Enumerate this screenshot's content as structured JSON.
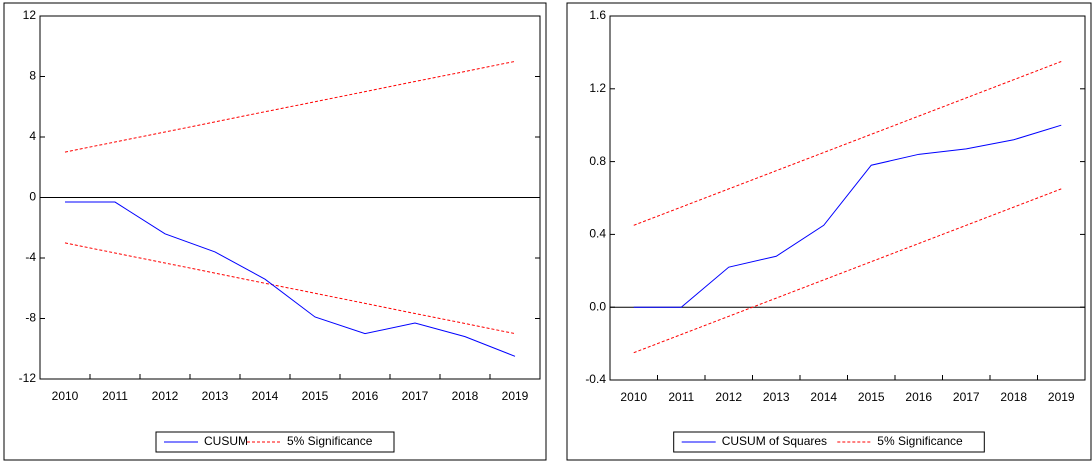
{
  "chart_data": [
    {
      "type": "line",
      "categories": [
        "2010",
        "2011",
        "2012",
        "2013",
        "2014",
        "2015",
        "2016",
        "2017",
        "2018",
        "2019"
      ],
      "series": [
        {
          "name": "CUSUM",
          "color": "#0000ff",
          "values": [
            -0.3,
            -0.3,
            -2.4,
            -3.6,
            -5.4,
            -7.9,
            -9.0,
            -8.3,
            -9.2,
            -10.5
          ]
        }
      ],
      "bands": {
        "name": "5% Significance",
        "color": "#ff0000",
        "upper": [
          3,
          3.67,
          4.33,
          5,
          5.67,
          6.33,
          7,
          7.67,
          8.33,
          9
        ],
        "lower": [
          -3,
          -3.67,
          -4.33,
          -5,
          -5.67,
          -6.33,
          -7,
          -7.67,
          -8.33,
          -9
        ]
      },
      "ylim": [
        -12,
        12
      ],
      "yticks": [
        12,
        8,
        4,
        0,
        -4,
        -8,
        -12
      ],
      "zero_line": true,
      "legend": "bottom"
    },
    {
      "type": "line",
      "categories": [
        "2010",
        "2011",
        "2012",
        "2013",
        "2014",
        "2015",
        "2016",
        "2017",
        "2018",
        "2019"
      ],
      "series": [
        {
          "name": "CUSUM of Squares",
          "color": "#0000ff",
          "values": [
            0,
            0,
            0.22,
            0.28,
            0.45,
            0.78,
            0.84,
            0.87,
            0.92,
            1.0
          ]
        }
      ],
      "bands": {
        "name": "5% Significance",
        "color": "#ff0000",
        "upper": [
          0.45,
          0.55,
          0.65,
          0.75,
          0.85,
          0.95,
          1.05,
          1.15,
          1.25,
          1.35
        ],
        "lower": [
          -0.25,
          -0.15,
          -0.05,
          0.05,
          0.15,
          0.25,
          0.35,
          0.45,
          0.55,
          0.65
        ]
      },
      "ylim": [
        -0.4,
        1.6
      ],
      "yticks": [
        1.6,
        1.2,
        0.8,
        0.4,
        {
          "value": 0,
          "label": "0.0"
        },
        -0.4
      ],
      "zero_line": true,
      "legend": "bottom"
    }
  ]
}
